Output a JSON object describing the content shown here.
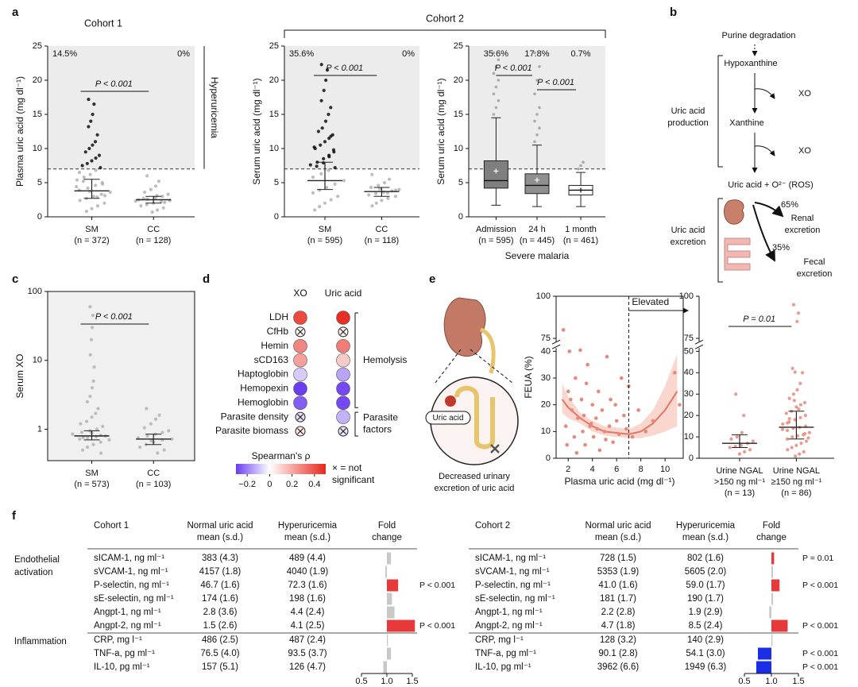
{
  "figure": {
    "panel_labels": [
      "a",
      "b",
      "c",
      "d",
      "e",
      "f"
    ],
    "cohort2": "Cohort 2"
  },
  "chart_data": [
    {
      "type": "strip",
      "title": "Cohort 1",
      "ylabel": "Plasma uric acid (mg dl⁻¹)",
      "ylim": [
        0,
        25
      ],
      "yticks": [
        0,
        5,
        10,
        15,
        20,
        25
      ],
      "threshold": 7,
      "shade": true,
      "shade_label": "Hyperuricemia",
      "color": "#b3b3b3",
      "high_color": "#111111",
      "p_values": [
        "P < 0.001"
      ],
      "groups": [
        {
          "label": [
            "SM",
            "(n = 372)"
          ],
          "percent": "14.5%",
          "median": 3.8,
          "q1": 2.7,
          "q3": 5.5,
          "points": [
            17.2,
            16.5,
            15.0,
            14.0,
            13.2,
            12.0,
            11.0,
            10.5,
            10.0,
            9.5,
            9.0,
            8.6,
            8.2,
            7.8,
            7.5,
            7.2,
            6.8,
            6.2,
            5.8,
            5.4,
            5.0,
            4.6,
            4.2,
            3.9,
            3.6,
            3.3,
            3.0,
            2.7,
            2.4,
            2.0,
            1.6,
            1.2,
            0.8,
            4.4,
            3.1,
            2.9,
            3.7,
            5.2,
            6.5,
            4.8
          ]
        },
        {
          "label": [
            "CC",
            "(n = 128)"
          ],
          "percent": "0%",
          "median": 2.5,
          "q1": 2.0,
          "q3": 3.0,
          "points": [
            6.0,
            5.2,
            4.5,
            4.0,
            3.6,
            3.3,
            3.0,
            2.8,
            2.6,
            2.5,
            2.4,
            2.2,
            2.0,
            1.8,
            1.6,
            1.3,
            1.0,
            0.7,
            2.7,
            2.3,
            2.1,
            3.1
          ]
        }
      ]
    },
    {
      "type": "strip",
      "ylabel": "Serum uric acid (mg dl⁻¹)",
      "ylim": [
        0,
        25
      ],
      "yticks": [
        0,
        5,
        10,
        15,
        20,
        25
      ],
      "threshold": 7,
      "shade": true,
      "color": "#b3b3b3",
      "high_color": "#111111",
      "p_values": [
        "P < 0.001"
      ],
      "groups": [
        {
          "label": [
            "SM",
            "(n = 595)"
          ],
          "percent": "35.6%",
          "median": 5.3,
          "q1": 4.0,
          "q3": 8.0,
          "points": [
            22.3,
            21.5,
            20.0,
            18.5,
            17.0,
            16.0,
            15.0,
            14.0,
            13.0,
            12.5,
            12.0,
            11.5,
            11.0,
            10.5,
            10.0,
            9.5,
            9.0,
            8.5,
            8.0,
            7.6,
            7.2,
            6.8,
            6.3,
            5.8,
            5.3,
            4.8,
            4.3,
            3.9,
            3.5,
            3.0,
            2.5,
            2.0,
            1.5,
            1.0,
            9.8,
            8.8,
            7.9,
            7.4,
            10.2,
            11.8
          ]
        },
        {
          "label": [
            "CC",
            "(n = 118)"
          ],
          "percent": "0%",
          "median": 3.7,
          "q1": 3.0,
          "q3": 4.3,
          "points": [
            6.2,
            5.5,
            5.0,
            4.6,
            4.3,
            4.0,
            3.8,
            3.6,
            3.4,
            3.2,
            3.0,
            2.7,
            2.4,
            2.0,
            1.6,
            3.9,
            3.5,
            4.1
          ]
        }
      ]
    },
    {
      "type": "box",
      "ylabel": "Serum uric acid (mg dl⁻¹)",
      "xlabel": "Severe malaria",
      "ylim": [
        0,
        25
      ],
      "yticks": [
        0,
        5,
        10,
        15,
        20,
        25
      ],
      "threshold": 7,
      "shade": true,
      "p_values": [
        "P < 0.001",
        "P < 0.001"
      ],
      "groups": [
        {
          "label": [
            "Admission",
            "(n = 595)"
          ],
          "percent": "35.6%",
          "whisker_low": 1.7,
          "q1": 4.2,
          "median": 5.3,
          "q3": 8.2,
          "whisker_high": 14.5,
          "mean": 6.7,
          "fill": "#7f7f7f",
          "outliers": [
            15,
            16,
            17,
            18,
            19,
            20,
            21,
            22,
            23,
            24
          ]
        },
        {
          "label": [
            "24 h",
            "(n = 445)"
          ],
          "percent": "17.8%",
          "whisker_low": 1.5,
          "q1": 3.4,
          "median": 4.6,
          "q3": 6.3,
          "whisker_high": 10.5,
          "mean": 5.4,
          "fill": "#8f8f8f",
          "outliers": [
            11,
            12,
            13,
            14,
            15,
            16,
            18,
            20,
            22,
            24
          ]
        },
        {
          "label": [
            "1 month",
            "(n = 461)"
          ],
          "percent": "0.7%",
          "whisker_low": 1.5,
          "q1": 3.2,
          "median": 3.9,
          "q3": 4.6,
          "whisker_high": 6.5,
          "mean": 3.9,
          "fill": "#ffffff",
          "outliers": [
            7,
            7.5,
            8
          ]
        }
      ]
    },
    {
      "type": "strip",
      "ylabel": "Serum XO",
      "log": true,
      "ylim": [
        0.35,
        100
      ],
      "yticks": [
        1,
        10,
        100
      ],
      "color": "#b3b3b3",
      "p_values": [
        "P < 0.001"
      ],
      "groups": [
        {
          "label": [
            "SM",
            "(n = 573)"
          ],
          "median": 0.8,
          "q1": 0.7,
          "q3": 0.95,
          "points": [
            60,
            45,
            30,
            20,
            12,
            8,
            5,
            4,
            3,
            2.5,
            2,
            1.7,
            1.5,
            1.3,
            1.2,
            1.1,
            1.0,
            0.95,
            0.9,
            0.85,
            0.8,
            0.78,
            0.75,
            0.72,
            0.7,
            0.65,
            0.6,
            0.55,
            0.5,
            0.45,
            0.82,
            0.88,
            0.76
          ]
        },
        {
          "label": [
            "CC",
            "(n = 103)"
          ],
          "median": 0.72,
          "q1": 0.6,
          "q3": 0.85,
          "points": [
            2.0,
            1.6,
            1.4,
            1.2,
            1.05,
            0.95,
            0.9,
            0.85,
            0.8,
            0.75,
            0.72,
            0.7,
            0.65,
            0.6,
            0.55,
            0.5,
            0.45,
            0.68
          ]
        }
      ]
    },
    {
      "type": "dot",
      "columns": [
        "XO",
        "Uric acid"
      ],
      "rows": [
        "LDH",
        "CfHb",
        "Hemin",
        "sCD163",
        "Haptoglobin",
        "Hemopexin",
        "Hemoglobin",
        "Parasite density",
        "Parasite biomass"
      ],
      "values": [
        [
          0.42,
          0.48
        ],
        [
          0.02,
          0.03
        ],
        [
          0.28,
          0.3
        ],
        [
          0.22,
          0.12
        ],
        [
          -0.08,
          -0.14
        ],
        [
          -0.3,
          -0.28
        ],
        [
          -0.25,
          -0.28
        ],
        [
          -0.05,
          -0.12
        ],
        [
          0.05,
          -0.04
        ]
      ],
      "significant": [
        [
          true,
          true
        ],
        [
          false,
          false
        ],
        [
          true,
          true
        ],
        [
          true,
          true
        ],
        [
          true,
          true
        ],
        [
          true,
          true
        ],
        [
          true,
          true
        ],
        [
          false,
          true
        ],
        [
          false,
          false
        ]
      ],
      "groups": [
        {
          "label": [
            "Hemolysis"
          ],
          "rows": [
            0,
            6
          ]
        },
        {
          "label": [
            "Parasite",
            "factors"
          ],
          "rows": [
            7,
            8
          ]
        }
      ],
      "colorbar_label": "Spearman's ρ",
      "clim": [
        -0.3,
        0.5
      ],
      "cmap": [
        "#6a3cf2",
        "#ffffff",
        "#e8261a"
      ],
      "cticks": [
        {
          "value": -0.2,
          "label": "−0.2"
        },
        0,
        0.2,
        0.4
      ],
      "ns_label": [
        "× = not",
        "significant"
      ]
    },
    {
      "type": "scatter",
      "xlabel": "Plasma uric acid (mg dl⁻¹)",
      "ylabel": "FEUA (%)",
      "xlim": [
        1,
        11.5
      ],
      "xticks": [
        2,
        4,
        6,
        8,
        10
      ],
      "ylim": [
        0,
        100
      ],
      "ybreak": [
        40,
        75
      ],
      "yticks": [
        0,
        10,
        20,
        30,
        40,
        75,
        100
      ],
      "color": "#e58a7a",
      "vline": 7,
      "vline_label": "Elevated",
      "x": [
        1.6,
        1.8,
        2.0,
        2.1,
        2.3,
        2.5,
        2.6,
        2.8,
        3.0,
        3.1,
        3.2,
        3.4,
        3.5,
        3.6,
        3.8,
        4.0,
        4.1,
        4.3,
        4.5,
        4.6,
        4.8,
        5.0,
        5.2,
        5.4,
        5.5,
        5.7,
        6.0,
        6.2,
        6.4,
        6.6,
        6.8,
        7.0,
        7.3,
        7.8,
        8.4,
        9.0,
        10.8,
        11.2,
        1.9,
        2.2,
        3.3,
        4.4,
        5.1,
        5.9,
        2.7,
        3.9
      ],
      "y": [
        80,
        12,
        25,
        40,
        18,
        8,
        30,
        15,
        68,
        22,
        10,
        5,
        28,
        35,
        12,
        20,
        8,
        15,
        25,
        3,
        18,
        10,
        38,
        12,
        22,
        6,
        14,
        9,
        30,
        16,
        11,
        27,
        8,
        18,
        10,
        14,
        32,
        20,
        5,
        22,
        16,
        11,
        7,
        20,
        2,
        13
      ],
      "fit": {
        "color": "#e07766",
        "band_color": "#f7c9bf",
        "x": [
          1.5,
          2,
          3,
          4,
          5,
          6,
          7,
          8,
          9,
          10,
          11
        ],
        "y": [
          22,
          19,
          15,
          12,
          10,
          9.5,
          9,
          10,
          13,
          18,
          25
        ],
        "upper": [
          28,
          23,
          17,
          14,
          12,
          11.5,
          11,
          13,
          18,
          27,
          39
        ],
        "lower": [
          17,
          15,
          13,
          10,
          8.5,
          8,
          7.5,
          7.5,
          8.5,
          10,
          12
        ]
      }
    },
    {
      "type": "strip",
      "ylim": [
        0,
        100
      ],
      "ybreak": [
        50,
        75
      ],
      "yticks": [
        0,
        10,
        20,
        30,
        40,
        50,
        75,
        100
      ],
      "color": "#e58a7a",
      "p_values": [
        "P = 0.01"
      ],
      "groups": [
        {
          "label": [
            "Urine NGAL",
            ">150 ng ml⁻¹",
            "(n = 13)"
          ],
          "median": 7,
          "q1": 5,
          "q3": 11,
          "points": [
            30,
            20,
            12,
            10,
            9,
            8,
            7,
            6,
            5.5,
            5,
            4,
            3,
            2
          ]
        },
        {
          "label": [
            "Urine NGAL",
            "≥150 ng ml⁻¹",
            "(n = 86)"
          ],
          "median": 14.5,
          "q1": 9,
          "q3": 22,
          "points": [
            95,
            90,
            85,
            55,
            42,
            40,
            35,
            32,
            30,
            28,
            26,
            25,
            24,
            22,
            21,
            20,
            19,
            18,
            17,
            16,
            15,
            14.5,
            14,
            13,
            12,
            11,
            10.5,
            10,
            9,
            8,
            7,
            6,
            5,
            4,
            3,
            2,
            1,
            18.5,
            13.5,
            11.5,
            23,
            27,
            16.5,
            9.5
          ]
        }
      ]
    }
  ],
  "diagram_b": {
    "purine": "Purine degradation",
    "hypoxanthine": "Hypoxanthine",
    "xo": [
      "XO",
      "XO"
    ],
    "xanthine": "Xanthine",
    "production": [
      "Uric acid",
      "production"
    ],
    "uric_acid_ros": "Uric acid + O²⁻ (ROS)",
    "renal_pct": "65%",
    "renal": [
      "Renal",
      "excretion"
    ],
    "fecal_pct": "35%",
    "fecal": [
      "Fecal",
      "excretion"
    ],
    "excretion": [
      "Uric acid",
      "excretion"
    ]
  },
  "illustration_e": {
    "uric_acid": "Uric acid",
    "caption": [
      "Decreased urinary",
      "excretion of uric acid"
    ]
  },
  "table_f": {
    "section_labels": [
      [
        "Endothelial",
        "activation"
      ],
      [
        "Inflammation"
      ]
    ],
    "fold_lim": [
      0.5,
      1.5
    ],
    "fold_ticks": [
      0.5,
      {
        "value": 1,
        "label": "1.0"
      },
      1.5
    ],
    "colors": {
      "up": "#e8383a",
      "down": "#1a2ee6",
      "ns": "#c8c8c8"
    },
    "cohorts": [
      {
        "title": "Cohort 1",
        "headers": [
          [
            "Normal uric acid",
            "mean (s.d.)"
          ],
          [
            "Hyperuricemia",
            "mean (s.d.)"
          ],
          [
            "Fold",
            "change"
          ]
        ],
        "sections": [
          [
            {
              "name": "sICAM-1, ng ml⁻¹",
              "normal": "383 (4.3)",
              "hyper": "489 (4.4)",
              "fold": 1.08,
              "color": "ns"
            },
            {
              "name": "sVCAM-1, ng ml⁻¹",
              "normal": "4157 (1.8)",
              "hyper": "4040 (1.9)",
              "fold": 0.97,
              "color": "ns"
            },
            {
              "name": "P-selectin, ng ml⁻¹",
              "normal": "46.7 (1.6)",
              "hyper": "72.3 (1.6)",
              "fold": 1.22,
              "color": "up",
              "p": "P < 0.001"
            },
            {
              "name": "sE-selectin, ng ml⁻¹",
              "normal": "174 (1.6)",
              "hyper": "198 (1.6)",
              "fold": 1.1,
              "color": "ns"
            },
            {
              "name": "Angpt-1, ng ml⁻¹",
              "normal": "2.8 (3.6)",
              "hyper": "4.4 (2.4)",
              "fold": 1.15,
              "color": "ns"
            },
            {
              "name": "Angpt-2, ng ml⁻¹",
              "normal": "1.5 (2.6)",
              "hyper": "4.1 (2.5)",
              "fold": 1.55,
              "color": "up",
              "p": "P < 0.001"
            }
          ],
          [
            {
              "name": "CRP, mg l⁻¹",
              "normal": "486 (2.5)",
              "hyper": "487 (2.4)",
              "fold": 1.02,
              "color": "ns"
            },
            {
              "name": "TNF-a, pg ml⁻¹",
              "normal": "76.5 (4.0)",
              "hyper": "93.5 (3.7)",
              "fold": 1.08,
              "color": "ns"
            },
            {
              "name": "IL-10, pg ml⁻¹",
              "normal": "157 (5.1)",
              "hyper": "126 (4.7)",
              "fold": 0.93,
              "color": "ns"
            }
          ]
        ]
      },
      {
        "title": "Cohort 2",
        "headers": [
          [
            "Normal uric acid",
            "mean (s.d.)"
          ],
          [
            "Hyperuricemia",
            "mean (s.d.)"
          ],
          [
            "Fold",
            "change"
          ]
        ],
        "sections": [
          [
            {
              "name": "sICAM-1, ng ml⁻¹",
              "normal": "728 (1.5)",
              "hyper": "802 (1.6)",
              "fold": 1.05,
              "color": "up",
              "p": "P = 0.01"
            },
            {
              "name": "sVCAM-1, ng ml⁻¹",
              "normal": "5353 (1.9)",
              "hyper": "5605 (2.0)",
              "fold": 1.03,
              "color": "ns"
            },
            {
              "name": "P-selectin, ng ml⁻¹",
              "normal": "41.0 (1.6)",
              "hyper": "59.0 (1.7)",
              "fold": 1.15,
              "color": "up",
              "p": "P < 0.001"
            },
            {
              "name": "sE-selectin, ng ml⁻¹",
              "normal": "181 (1.7)",
              "hyper": "190 (1.7)",
              "fold": 1.03,
              "color": "ns"
            },
            {
              "name": "Angpt-1, ng ml⁻¹",
              "normal": "2.2 (2.8)",
              "hyper": "1.9 (2.9)",
              "fold": 0.96,
              "color": "ns"
            },
            {
              "name": "Angpt-2, ng ml⁻¹",
              "normal": "4.7 (1.8)",
              "hyper": "8.5 (2.4)",
              "fold": 1.3,
              "color": "up",
              "p": "P < 0.001"
            }
          ],
          [
            {
              "name": "CRP, mg l⁻¹",
              "normal": "128 (3.2)",
              "hyper": "140 (2.9)",
              "fold": 1.02,
              "color": "ns"
            },
            {
              "name": "TNF-a, pg ml⁻¹",
              "normal": "90.1 (2.8)",
              "hyper": "54.1 (3.0)",
              "fold": 0.75,
              "color": "down",
              "p": "P < 0.001"
            },
            {
              "name": "IL-10, pg ml⁻¹",
              "normal": "3962 (6.6)",
              "hyper": "1949 (6.3)",
              "fold": 0.72,
              "color": "down",
              "p": "P < 0.001"
            }
          ]
        ]
      }
    ]
  }
}
